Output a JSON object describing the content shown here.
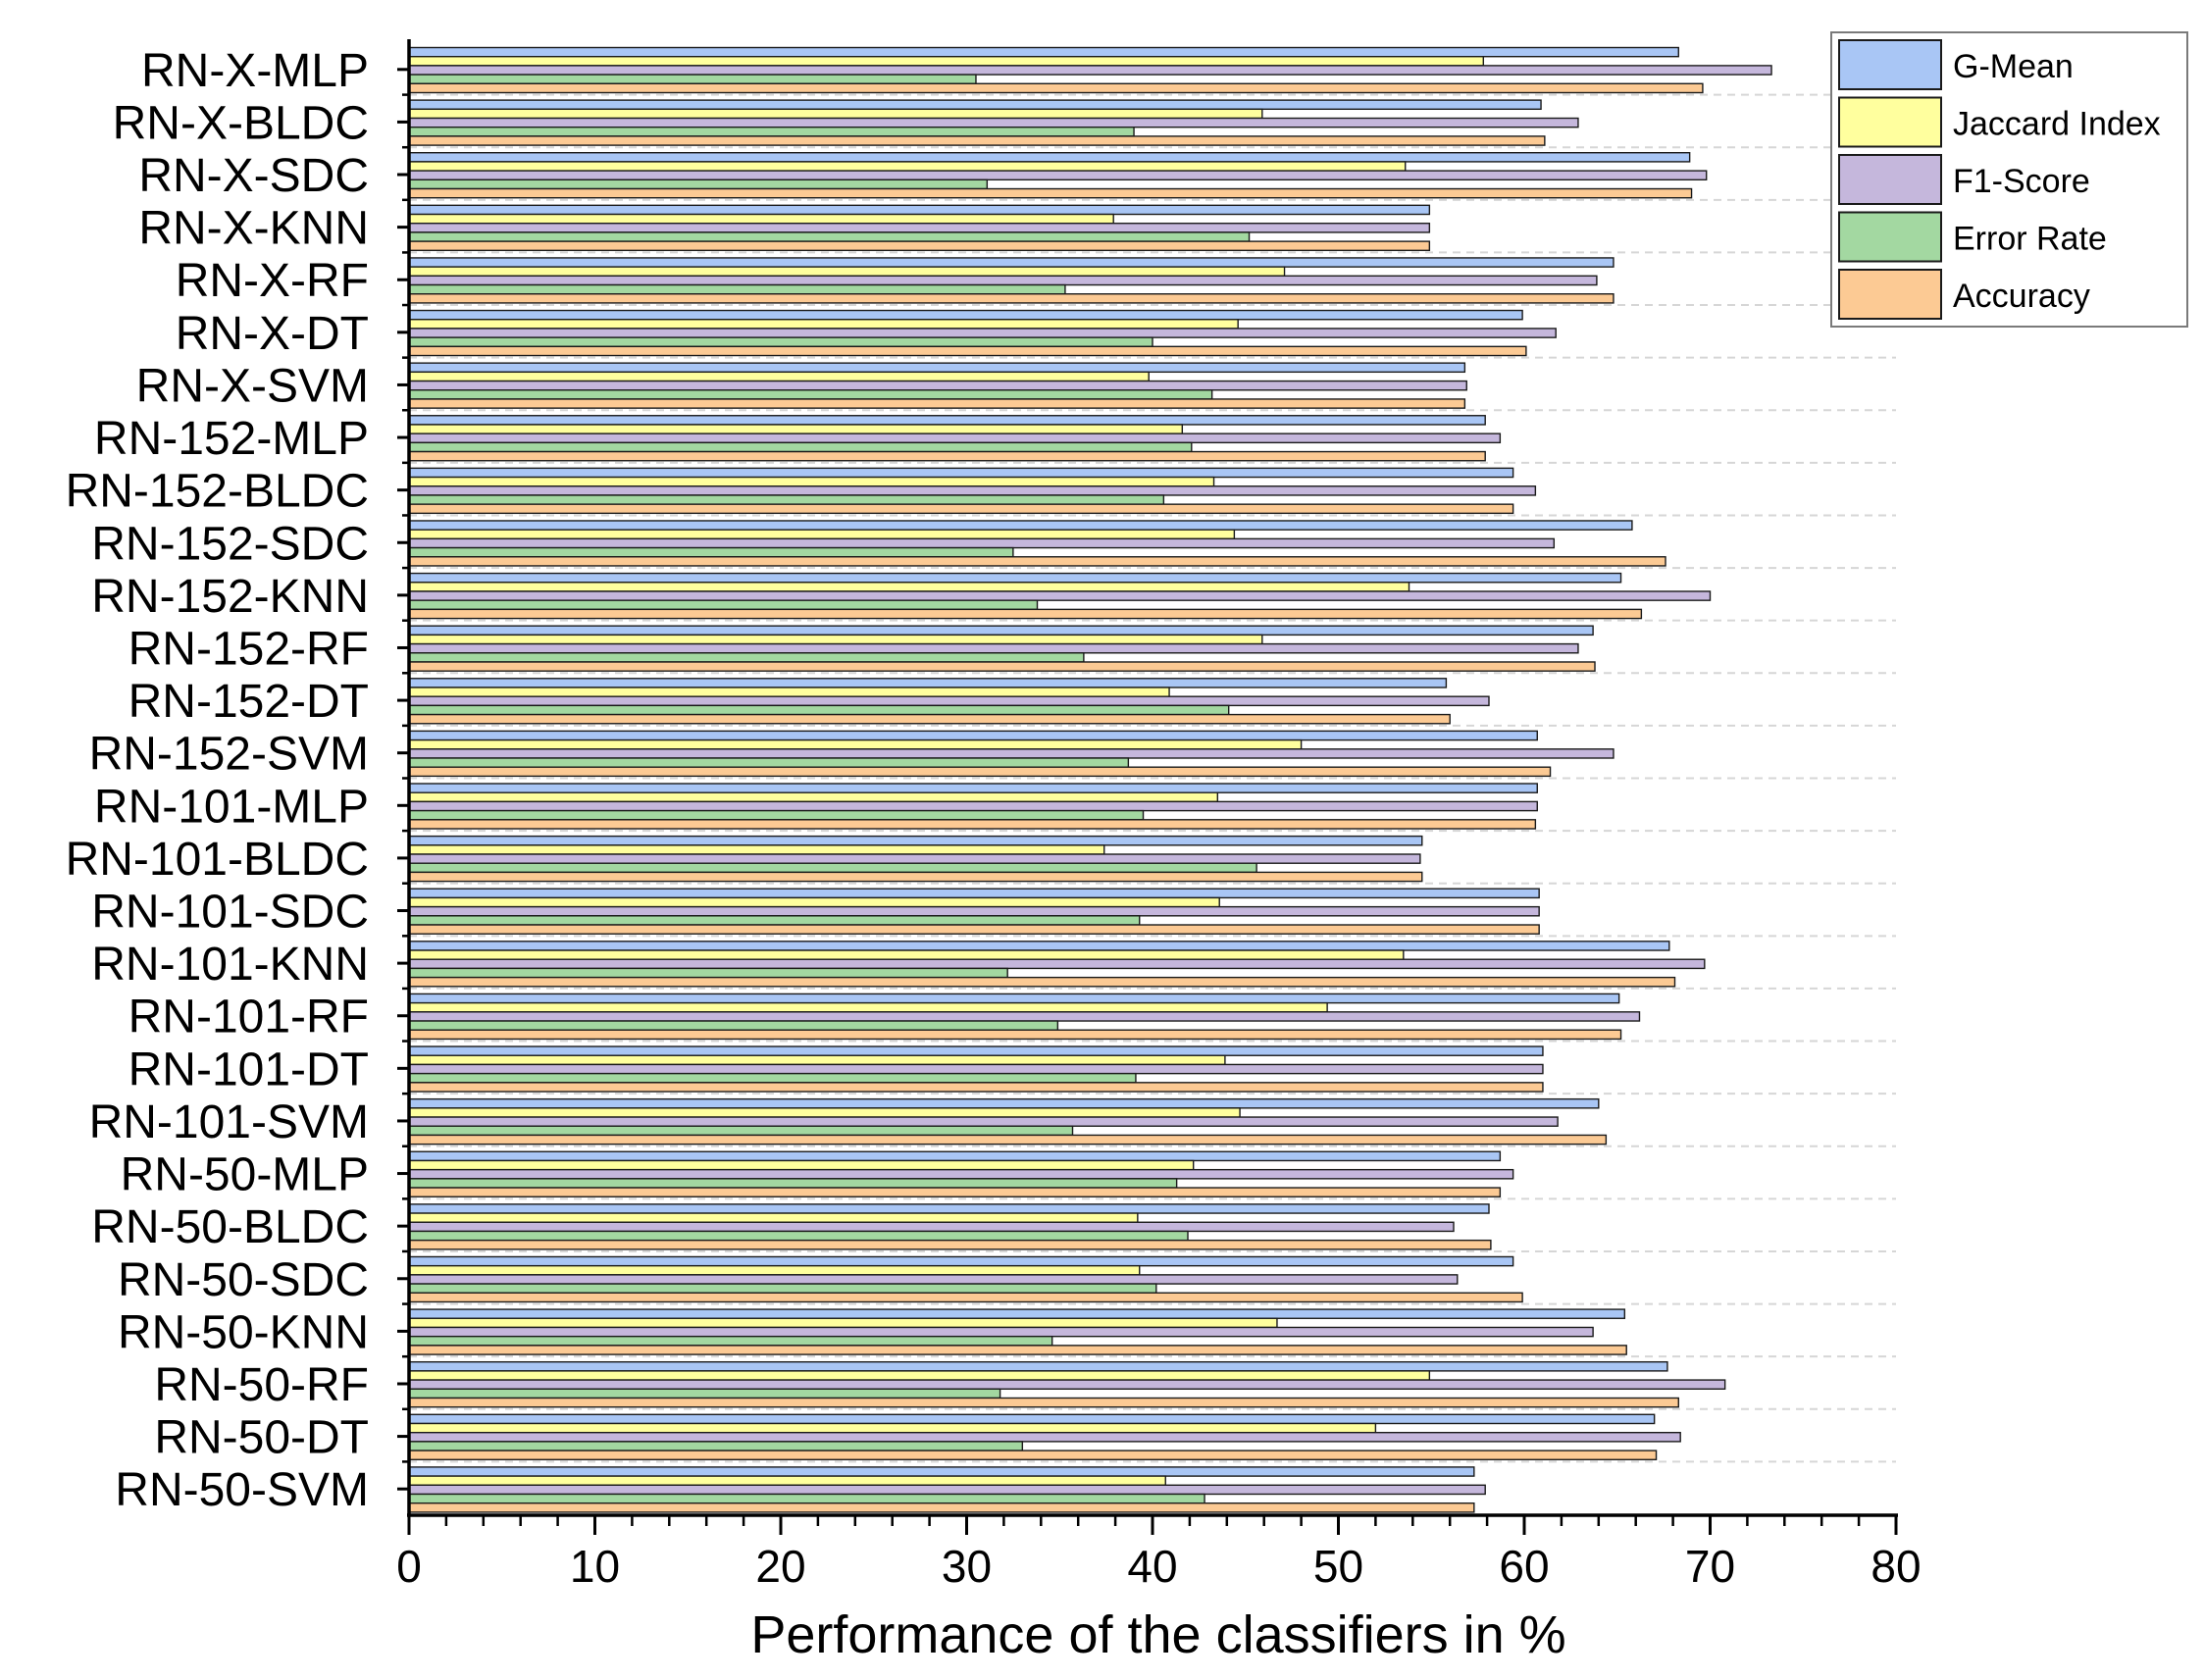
{
  "chart_data": {
    "type": "bar",
    "orientation": "horizontal",
    "title": "",
    "xlabel": "Performance of the classifiers in %",
    "ylabel": "",
    "xlim": [
      0,
      80
    ],
    "xticks": [
      0,
      10,
      20,
      30,
      40,
      50,
      60,
      70,
      80
    ],
    "grid": "dashed horizontal",
    "legend_position": "top-right",
    "categories": [
      "RN-X-MLP",
      "RN-X-BLDC",
      "RN-X-SDC",
      "RN-X-KNN",
      "RN-X-RF",
      "RN-X-DT",
      "RN-X-SVM",
      "RN-152-MLP",
      "RN-152-BLDC",
      "RN-152-SDC",
      "RN-152-KNN",
      "RN-152-RF",
      "RN-152-DT",
      "RN-152-SVM",
      "RN-101-MLP",
      "RN-101-BLDC",
      "RN-101-SDC",
      "RN-101-KNN",
      "RN-101-RF",
      "RN-101-DT",
      "RN-101-SVM",
      "RN-50-MLP",
      "RN-50-BLDC",
      "RN-50-SDC",
      "RN-50-KNN",
      "RN-50-RF",
      "RN-50-DT",
      "RN-50-SVM"
    ],
    "series": [
      {
        "name": "G-Mean",
        "color": "#a9c6f5",
        "values": [
          68.3,
          60.9,
          68.9,
          54.9,
          64.8,
          59.9,
          56.8,
          57.9,
          59.4,
          65.8,
          65.2,
          63.7,
          55.8,
          60.7,
          60.7,
          54.5,
          60.8,
          67.8,
          65.1,
          61.0,
          64.0,
          58.7,
          58.1,
          59.4,
          65.4,
          67.7,
          67.0,
          57.3
        ]
      },
      {
        "name": "Jaccard Index",
        "color": "#ffff9e",
        "values": [
          57.8,
          45.9,
          53.6,
          37.9,
          47.1,
          44.6,
          39.8,
          41.6,
          43.3,
          44.4,
          53.8,
          45.9,
          40.9,
          48.0,
          43.5,
          37.4,
          43.6,
          53.5,
          49.4,
          43.9,
          44.7,
          42.2,
          39.2,
          39.3,
          46.7,
          54.9,
          52.0,
          40.7
        ]
      },
      {
        "name": "F1-Score",
        "color": "#c5b7dc",
        "values": [
          73.3,
          62.9,
          69.8,
          54.9,
          63.9,
          61.7,
          56.9,
          58.7,
          60.6,
          61.6,
          70.0,
          62.9,
          58.1,
          64.8,
          60.7,
          54.4,
          60.8,
          69.7,
          66.2,
          61.0,
          61.8,
          59.4,
          56.2,
          56.4,
          63.7,
          70.8,
          68.4,
          57.9
        ]
      },
      {
        "name": "Error Rate",
        "color": "#a3d8a1",
        "values": [
          30.5,
          39.0,
          31.1,
          45.2,
          35.3,
          40.0,
          43.2,
          42.1,
          40.6,
          32.5,
          33.8,
          36.3,
          44.1,
          38.7,
          39.5,
          45.6,
          39.3,
          32.2,
          34.9,
          39.1,
          35.7,
          41.3,
          41.9,
          40.2,
          34.6,
          31.8,
          33.0,
          42.8
        ]
      },
      {
        "name": "Accuracy",
        "color": "#fcca94",
        "values": [
          69.6,
          61.1,
          69.0,
          54.9,
          64.8,
          60.1,
          56.8,
          57.9,
          59.4,
          67.6,
          66.3,
          63.8,
          56.0,
          61.4,
          60.6,
          54.5,
          60.8,
          68.1,
          65.2,
          61.0,
          64.4,
          58.7,
          58.2,
          59.9,
          65.5,
          68.3,
          67.1,
          57.3
        ]
      }
    ]
  }
}
